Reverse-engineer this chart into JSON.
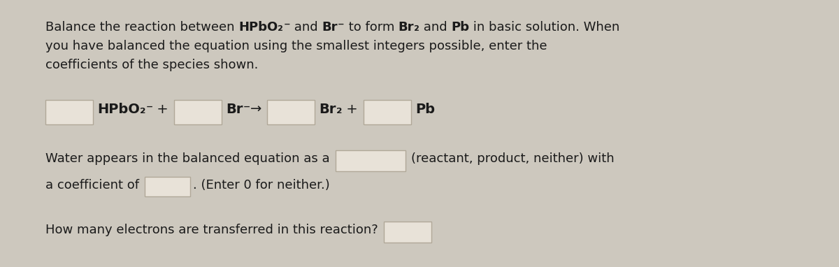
{
  "bg_color": "#cdc8be",
  "box_facecolor": "#e8e2d8",
  "box_edgecolor": "#b0a898",
  "text_color": "#1a1a1a",
  "fig_width": 12.0,
  "fig_height": 3.82,
  "line1_normal_1": "Balance the reaction between ",
  "line1_bold_1": "HPbO",
  "line1_bold_1_sub": "₂",
  "line1_bold_1_sup": "⁻",
  "line1_normal_2": " and ",
  "line1_bold_2": "Br",
  "line1_bold_2_sup": "⁻",
  "line1_normal_3": " to form ",
  "line1_bold_3": "Br",
  "line1_bold_3_sub": "₂",
  "line1_normal_4": " and ",
  "line1_bold_4": "Pb",
  "line1_normal_5": " in basic solution. When",
  "line2": "you have balanced the equation using the smallest integers possible, enter the",
  "line3": "coefficients of the species shown.",
  "eq_hpbo": "HPbO",
  "eq_hpbo_sub": "₂",
  "eq_hpbo_sup": "⁻",
  "eq_plus1": " +",
  "eq_br": "Br",
  "eq_br_sup": "⁻",
  "eq_arrow": "→",
  "eq_br2": "Br",
  "eq_br2_sub": "₂",
  "eq_plus2": " +",
  "eq_pb": "Pb",
  "water_line": "Water appears in the balanced equation as a",
  "water_end": "(reactant, product, neither) with",
  "coeff_line": "a coefficient of",
  "coeff_end": ". (Enter 0 for neither.)",
  "electrons_line": "How many electrons are transferred in this reaction?"
}
